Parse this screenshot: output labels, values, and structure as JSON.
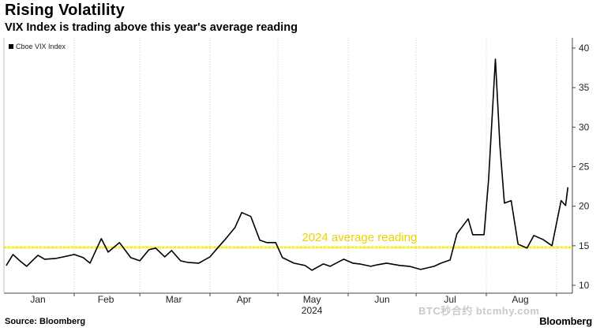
{
  "title": "Rising Volatility",
  "subtitle": "VIX Index is trading above this year's average reading",
  "source": "Source: Bloomberg",
  "brand": "Bloomberg",
  "watermark": "BTC秒合约 btcmhy.com",
  "colors": {
    "line": "#000000",
    "average": "#f2e600",
    "annotation": "#e8d300",
    "grid": "#cccccc"
  },
  "chart_data": {
    "type": "line",
    "title": "Rising Volatility",
    "subtitle": "VIX Index is trading above this year's average reading",
    "xlabel": "2024",
    "ylabel": "",
    "ylim": [
      10,
      40
    ],
    "y_ticks": [
      "10",
      "15",
      "20",
      "25",
      "30",
      "35",
      "40"
    ],
    "x_ticks": [
      "Jan",
      "Feb",
      "Mar",
      "Apr",
      "May",
      "Jun",
      "Jul",
      "Aug"
    ],
    "x_year_label": "2024",
    "grid": "vertical dotted lines at month boundaries",
    "legend": "top-left",
    "y_axis_side": "right",
    "series": [
      {
        "name": "Cboe VIX Index",
        "x": [
          "2024-01-02",
          "2024-01-05",
          "2024-01-08",
          "2024-01-11",
          "2024-01-16",
          "2024-01-19",
          "2024-01-24",
          "2024-01-29",
          "2024-02-01",
          "2024-02-05",
          "2024-02-08",
          "2024-02-13",
          "2024-02-16",
          "2024-02-21",
          "2024-02-26",
          "2024-03-01",
          "2024-03-05",
          "2024-03-08",
          "2024-03-12",
          "2024-03-15",
          "2024-03-19",
          "2024-03-22",
          "2024-03-27",
          "2024-04-01",
          "2024-04-04",
          "2024-04-08",
          "2024-04-12",
          "2024-04-15",
          "2024-04-19",
          "2024-04-23",
          "2024-04-26",
          "2024-04-30",
          "2024-05-03",
          "2024-05-08",
          "2024-05-13",
          "2024-05-16",
          "2024-05-21",
          "2024-05-24",
          "2024-05-30",
          "2024-06-03",
          "2024-06-06",
          "2024-06-11",
          "2024-06-14",
          "2024-06-18",
          "2024-06-24",
          "2024-06-28",
          "2024-07-03",
          "2024-07-09",
          "2024-07-12",
          "2024-07-16",
          "2024-07-19",
          "2024-07-24",
          "2024-07-26",
          "2024-07-31",
          "2024-08-02",
          "2024-08-05",
          "2024-08-07",
          "2024-08-09",
          "2024-08-12",
          "2024-08-15",
          "2024-08-19",
          "2024-08-22",
          "2024-08-26",
          "2024-08-30",
          "2024-09-03",
          "2024-09-05",
          "2024-09-06"
        ],
        "values": [
          12.5,
          13.9,
          13.1,
          12.4,
          13.8,
          13.3,
          13.4,
          13.7,
          13.9,
          13.5,
          12.8,
          15.9,
          14.2,
          15.4,
          13.5,
          13.1,
          14.5,
          14.7,
          13.6,
          14.4,
          13.1,
          12.9,
          12.8,
          13.6,
          14.6,
          15.9,
          17.3,
          19.2,
          18.7,
          15.7,
          15.4,
          15.4,
          13.5,
          12.8,
          12.5,
          11.9,
          12.7,
          12.4,
          13.3,
          12.8,
          12.7,
          12.4,
          12.6,
          12.8,
          12.5,
          12.4,
          12.0,
          12.4,
          12.8,
          13.2,
          16.5,
          18.4,
          16.4,
          16.4,
          23.4,
          38.6,
          27.7,
          20.4,
          20.7,
          15.2,
          14.7,
          16.3,
          15.8,
          15.0,
          20.7,
          20.1,
          22.4
        ]
      },
      {
        "name": "2024 average reading",
        "values": [
          14.8
        ]
      }
    ],
    "annotations": [
      {
        "text": "2024 average reading",
        "y": 14.8
      }
    ]
  }
}
